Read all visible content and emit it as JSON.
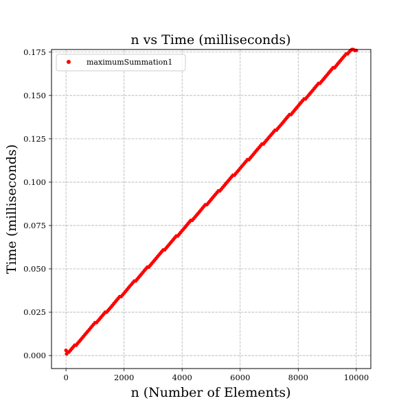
{
  "chart_data": {
    "type": "scatter",
    "title": "n vs Time (milliseconds)",
    "xlabel": "n (Number of Elements)",
    "ylabel": "Time (milliseconds)",
    "xlim": [
      -500,
      10500
    ],
    "ylim": [
      -0.0075,
      0.1765
    ],
    "xticks": [
      0,
      2000,
      4000,
      6000,
      8000,
      10000
    ],
    "xtick_labels": [
      "0",
      "2000",
      "4000",
      "6000",
      "8000",
      "10000"
    ],
    "yticks": [
      0.0,
      0.025,
      0.05,
      0.075,
      0.1,
      0.125,
      0.15,
      0.175
    ],
    "ytick_labels": [
      "0.000",
      "0.025",
      "0.050",
      "0.075",
      "0.100",
      "0.125",
      "0.150",
      "0.175"
    ],
    "grid": true,
    "legend_position": "top-left",
    "series": [
      {
        "name": "maximumSummation1",
        "color": "#ff0000",
        "marker": "circle",
        "points": [
          [
            0,
            0.003
          ],
          [
            20,
            0.001
          ],
          [
            60,
            0.002
          ],
          [
            100,
            0.002
          ],
          [
            150,
            0.003
          ],
          [
            200,
            0.004
          ],
          [
            250,
            0.005
          ],
          [
            300,
            0.006
          ],
          [
            350,
            0.006
          ],
          [
            400,
            0.007
          ],
          [
            450,
            0.008
          ],
          [
            500,
            0.009
          ],
          [
            550,
            0.01
          ],
          [
            600,
            0.011
          ],
          [
            650,
            0.012
          ],
          [
            700,
            0.013
          ],
          [
            750,
            0.014
          ],
          [
            800,
            0.015
          ],
          [
            850,
            0.016
          ],
          [
            900,
            0.017
          ],
          [
            950,
            0.018
          ],
          [
            1000,
            0.019
          ],
          [
            1050,
            0.019
          ],
          [
            1100,
            0.02
          ],
          [
            1150,
            0.021
          ],
          [
            1200,
            0.022
          ],
          [
            1250,
            0.023
          ],
          [
            1300,
            0.024
          ],
          [
            1350,
            0.025
          ],
          [
            1400,
            0.025
          ],
          [
            1450,
            0.026
          ],
          [
            1500,
            0.027
          ],
          [
            1550,
            0.028
          ],
          [
            1600,
            0.029
          ],
          [
            1650,
            0.03
          ],
          [
            1700,
            0.031
          ],
          [
            1750,
            0.032
          ],
          [
            1800,
            0.033
          ],
          [
            1850,
            0.034
          ],
          [
            1900,
            0.034
          ],
          [
            1950,
            0.035
          ],
          [
            2000,
            0.036
          ],
          [
            2050,
            0.037
          ],
          [
            2100,
            0.038
          ],
          [
            2150,
            0.039
          ],
          [
            2200,
            0.04
          ],
          [
            2250,
            0.041
          ],
          [
            2300,
            0.042
          ],
          [
            2350,
            0.043
          ],
          [
            2400,
            0.043
          ],
          [
            2450,
            0.044
          ],
          [
            2500,
            0.045
          ],
          [
            2550,
            0.046
          ],
          [
            2600,
            0.047
          ],
          [
            2650,
            0.048
          ],
          [
            2700,
            0.049
          ],
          [
            2750,
            0.05
          ],
          [
            2800,
            0.051
          ],
          [
            2850,
            0.051
          ],
          [
            2900,
            0.052
          ],
          [
            2950,
            0.053
          ],
          [
            3000,
            0.054
          ],
          [
            3050,
            0.055
          ],
          [
            3100,
            0.056
          ],
          [
            3150,
            0.057
          ],
          [
            3200,
            0.058
          ],
          [
            3250,
            0.059
          ],
          [
            3300,
            0.06
          ],
          [
            3350,
            0.061
          ],
          [
            3400,
            0.061
          ],
          [
            3450,
            0.062
          ],
          [
            3500,
            0.063
          ],
          [
            3550,
            0.064
          ],
          [
            3600,
            0.065
          ],
          [
            3650,
            0.066
          ],
          [
            3700,
            0.067
          ],
          [
            3750,
            0.068
          ],
          [
            3800,
            0.069
          ],
          [
            3850,
            0.069
          ],
          [
            3900,
            0.07
          ],
          [
            3950,
            0.071
          ],
          [
            4000,
            0.072
          ],
          [
            4050,
            0.073
          ],
          [
            4100,
            0.074
          ],
          [
            4150,
            0.075
          ],
          [
            4200,
            0.076
          ],
          [
            4250,
            0.077
          ],
          [
            4300,
            0.078
          ],
          [
            4350,
            0.078
          ],
          [
            4400,
            0.079
          ],
          [
            4450,
            0.08
          ],
          [
            4500,
            0.081
          ],
          [
            4550,
            0.082
          ],
          [
            4600,
            0.083
          ],
          [
            4650,
            0.084
          ],
          [
            4700,
            0.085
          ],
          [
            4750,
            0.086
          ],
          [
            4800,
            0.087
          ],
          [
            4850,
            0.087
          ],
          [
            4900,
            0.088
          ],
          [
            4950,
            0.089
          ],
          [
            5000,
            0.09
          ],
          [
            5050,
            0.091
          ],
          [
            5100,
            0.092
          ],
          [
            5150,
            0.093
          ],
          [
            5200,
            0.094
          ],
          [
            5250,
            0.095
          ],
          [
            5300,
            0.095
          ],
          [
            5350,
            0.096
          ],
          [
            5400,
            0.097
          ],
          [
            5450,
            0.098
          ],
          [
            5500,
            0.099
          ],
          [
            5550,
            0.1
          ],
          [
            5600,
            0.101
          ],
          [
            5650,
            0.102
          ],
          [
            5700,
            0.103
          ],
          [
            5750,
            0.104
          ],
          [
            5800,
            0.104
          ],
          [
            5850,
            0.105
          ],
          [
            5900,
            0.106
          ],
          [
            5950,
            0.107
          ],
          [
            6000,
            0.108
          ],
          [
            6050,
            0.109
          ],
          [
            6100,
            0.11
          ],
          [
            6150,
            0.111
          ],
          [
            6200,
            0.112
          ],
          [
            6250,
            0.113
          ],
          [
            6300,
            0.113
          ],
          [
            6350,
            0.114
          ],
          [
            6400,
            0.115
          ],
          [
            6450,
            0.116
          ],
          [
            6500,
            0.117
          ],
          [
            6550,
            0.118
          ],
          [
            6600,
            0.119
          ],
          [
            6650,
            0.12
          ],
          [
            6700,
            0.121
          ],
          [
            6750,
            0.122
          ],
          [
            6800,
            0.122
          ],
          [
            6850,
            0.123
          ],
          [
            6900,
            0.124
          ],
          [
            6950,
            0.125
          ],
          [
            7000,
            0.126
          ],
          [
            7050,
            0.127
          ],
          [
            7100,
            0.128
          ],
          [
            7150,
            0.129
          ],
          [
            7200,
            0.13
          ],
          [
            7250,
            0.13
          ],
          [
            7300,
            0.131
          ],
          [
            7350,
            0.132
          ],
          [
            7400,
            0.133
          ],
          [
            7450,
            0.134
          ],
          [
            7500,
            0.135
          ],
          [
            7550,
            0.136
          ],
          [
            7600,
            0.137
          ],
          [
            7650,
            0.138
          ],
          [
            7700,
            0.139
          ],
          [
            7750,
            0.139
          ],
          [
            7800,
            0.14
          ],
          [
            7850,
            0.141
          ],
          [
            7900,
            0.142
          ],
          [
            7950,
            0.143
          ],
          [
            8000,
            0.144
          ],
          [
            8050,
            0.145
          ],
          [
            8100,
            0.146
          ],
          [
            8150,
            0.147
          ],
          [
            8200,
            0.148
          ],
          [
            8250,
            0.148
          ],
          [
            8300,
            0.149
          ],
          [
            8350,
            0.15
          ],
          [
            8400,
            0.151
          ],
          [
            8450,
            0.152
          ],
          [
            8500,
            0.153
          ],
          [
            8550,
            0.154
          ],
          [
            8600,
            0.155
          ],
          [
            8650,
            0.156
          ],
          [
            8700,
            0.157
          ],
          [
            8750,
            0.157
          ],
          [
            8800,
            0.158
          ],
          [
            8850,
            0.159
          ],
          [
            8900,
            0.16
          ],
          [
            8950,
            0.161
          ],
          [
            9000,
            0.162
          ],
          [
            9050,
            0.163
          ],
          [
            9100,
            0.164
          ],
          [
            9150,
            0.165
          ],
          [
            9200,
            0.166
          ],
          [
            9250,
            0.166
          ],
          [
            9300,
            0.167
          ],
          [
            9350,
            0.168
          ],
          [
            9400,
            0.169
          ],
          [
            9450,
            0.17
          ],
          [
            9500,
            0.171
          ],
          [
            9550,
            0.172
          ],
          [
            9600,
            0.173
          ],
          [
            9650,
            0.174
          ],
          [
            9700,
            0.174
          ],
          [
            9750,
            0.175
          ],
          [
            9800,
            0.176
          ],
          [
            9850,
            0.1765
          ],
          [
            9900,
            0.1765
          ],
          [
            9950,
            0.176
          ],
          [
            10000,
            0.176
          ]
        ]
      }
    ]
  }
}
